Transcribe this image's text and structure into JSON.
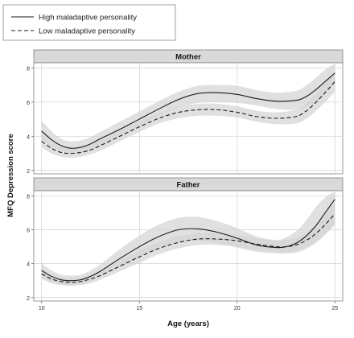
{
  "chart_data": {
    "type": "line",
    "xlabel": "Age (years)",
    "ylabel": "MFQ Depression score",
    "xlim": [
      9.6,
      25.4
    ],
    "x_ticks": [
      10,
      15,
      20,
      25
    ],
    "legend": {
      "placement": "top-left",
      "entries": [
        {
          "label": "High maladaptive personality",
          "style": "solid"
        },
        {
          "label": "Low maladaptive personality",
          "style": "dashed"
        }
      ]
    },
    "panels": [
      {
        "title": "Mother",
        "ylim": [
          1.8,
          8.3
        ],
        "y_ticks": [
          2,
          4,
          6,
          8
        ],
        "series": [
          {
            "name": "High maladaptive personality",
            "style": "solid",
            "x": [
              10,
              10.5,
              11,
              11.5,
              12,
              12.5,
              13,
              14,
              15,
              16,
              17,
              18,
              19,
              20,
              21,
              22,
              23,
              23.5,
              24,
              24.5,
              25
            ],
            "y": [
              4.3,
              3.8,
              3.45,
              3.3,
              3.35,
              3.55,
              3.85,
              4.4,
              5.0,
              5.6,
              6.15,
              6.5,
              6.55,
              6.45,
              6.2,
              6.05,
              6.1,
              6.3,
              6.7,
              7.2,
              7.7
            ],
            "ci_lower": [
              3.8,
              3.4,
              3.15,
              3.0,
              3.05,
              3.25,
              3.5,
              4.05,
              4.6,
              5.2,
              5.7,
              5.95,
              6.0,
              5.95,
              5.8,
              5.6,
              5.55,
              5.7,
              6.0,
              6.5,
              7.0
            ],
            "ci_upper": [
              4.9,
              4.3,
              3.85,
              3.7,
              3.75,
              3.95,
              4.25,
              4.85,
              5.45,
              6.05,
              6.6,
              6.95,
              7.0,
              6.95,
              6.7,
              6.55,
              6.65,
              6.95,
              7.4,
              7.9,
              8.25
            ]
          },
          {
            "name": "Low maladaptive personality",
            "style": "dashed",
            "x": [
              10,
              10.5,
              11,
              11.5,
              12,
              12.5,
              13,
              14,
              15,
              16,
              17,
              18,
              19,
              20,
              21,
              22,
              23,
              23.5,
              24,
              24.5,
              25
            ],
            "y": [
              3.7,
              3.3,
              3.05,
              3.0,
              3.05,
              3.2,
              3.45,
              4.0,
              4.55,
              5.05,
              5.4,
              5.55,
              5.55,
              5.4,
              5.15,
              5.05,
              5.15,
              5.45,
              5.95,
              6.55,
              7.2
            ],
            "ci_lower": [
              3.35,
              3.0,
              2.8,
              2.75,
              2.8,
              2.95,
              3.15,
              3.7,
              4.25,
              4.75,
              5.05,
              5.2,
              5.2,
              5.1,
              4.85,
              4.7,
              4.75,
              5.0,
              5.45,
              6.0,
              6.6
            ],
            "ci_upper": [
              4.1,
              3.6,
              3.35,
              3.3,
              3.35,
              3.5,
              3.75,
              4.3,
              4.85,
              5.35,
              5.75,
              5.9,
              5.9,
              5.75,
              5.5,
              5.4,
              5.55,
              5.9,
              6.45,
              7.1,
              7.8
            ]
          }
        ]
      },
      {
        "title": "Father",
        "ylim": [
          1.8,
          8.3
        ],
        "y_ticks": [
          2,
          4,
          6,
          8
        ],
        "series": [
          {
            "name": "High maladaptive personality",
            "style": "solid",
            "x": [
              10,
              10.5,
              11,
              11.5,
              12,
              12.5,
              13,
              14,
              15,
              16,
              17,
              18,
              19,
              20,
              21,
              22,
              22.5,
              23,
              23.5,
              24,
              24.5,
              25
            ],
            "y": [
              3.6,
              3.25,
              3.05,
              3.0,
              3.05,
              3.25,
              3.55,
              4.3,
              5.0,
              5.6,
              6.0,
              6.05,
              5.85,
              5.5,
              5.1,
              4.95,
              5.0,
              5.2,
              5.6,
              6.2,
              7.0,
              7.8
            ],
            "ci_lower": [
              3.2,
              2.95,
              2.8,
              2.75,
              2.8,
              2.95,
              3.2,
              3.8,
              4.4,
              4.95,
              5.3,
              5.35,
              5.2,
              4.95,
              4.7,
              4.6,
              4.6,
              4.65,
              4.85,
              5.2,
              5.7,
              6.3
            ],
            "ci_upper": [
              4.0,
              3.6,
              3.35,
              3.3,
              3.35,
              3.6,
              3.95,
              4.85,
              5.65,
              6.3,
              6.7,
              6.75,
              6.5,
              6.1,
              5.6,
              5.4,
              5.55,
              5.9,
              6.5,
              7.3,
              7.9,
              8.25
            ]
          },
          {
            "name": "Low maladaptive personality",
            "style": "dashed",
            "x": [
              10,
              10.5,
              11,
              11.5,
              12,
              12.5,
              13,
              14,
              15,
              16,
              17,
              18,
              19,
              20,
              21,
              22,
              22.5,
              23,
              23.5,
              24,
              24.5,
              25
            ],
            "y": [
              3.4,
              3.1,
              2.95,
              2.9,
              2.95,
              3.1,
              3.3,
              3.85,
              4.4,
              4.9,
              5.25,
              5.45,
              5.45,
              5.35,
              5.15,
              5.0,
              5.0,
              5.1,
              5.35,
              5.75,
              6.3,
              6.95
            ],
            "ci_lower": [
              3.1,
              2.85,
              2.75,
              2.7,
              2.75,
              2.85,
              3.05,
              3.55,
              4.05,
              4.55,
              4.9,
              5.1,
              5.1,
              5.0,
              4.8,
              4.7,
              4.7,
              4.75,
              4.95,
              5.3,
              5.75,
              6.3
            ],
            "ci_upper": [
              3.7,
              3.35,
              3.2,
              3.15,
              3.2,
              3.35,
              3.6,
              4.15,
              4.75,
              5.25,
              5.6,
              5.8,
              5.8,
              5.7,
              5.5,
              5.35,
              5.4,
              5.5,
              5.8,
              6.25,
              6.9,
              7.6
            ]
          }
        ]
      }
    ]
  },
  "colors": {
    "panel_bg": "#ffffff",
    "strip_bg": "#d9d9d9",
    "grid": "#d0d0d0",
    "band": "#d6d6d6",
    "line": "#1a1a1a",
    "frame": "#7f7f7f"
  }
}
